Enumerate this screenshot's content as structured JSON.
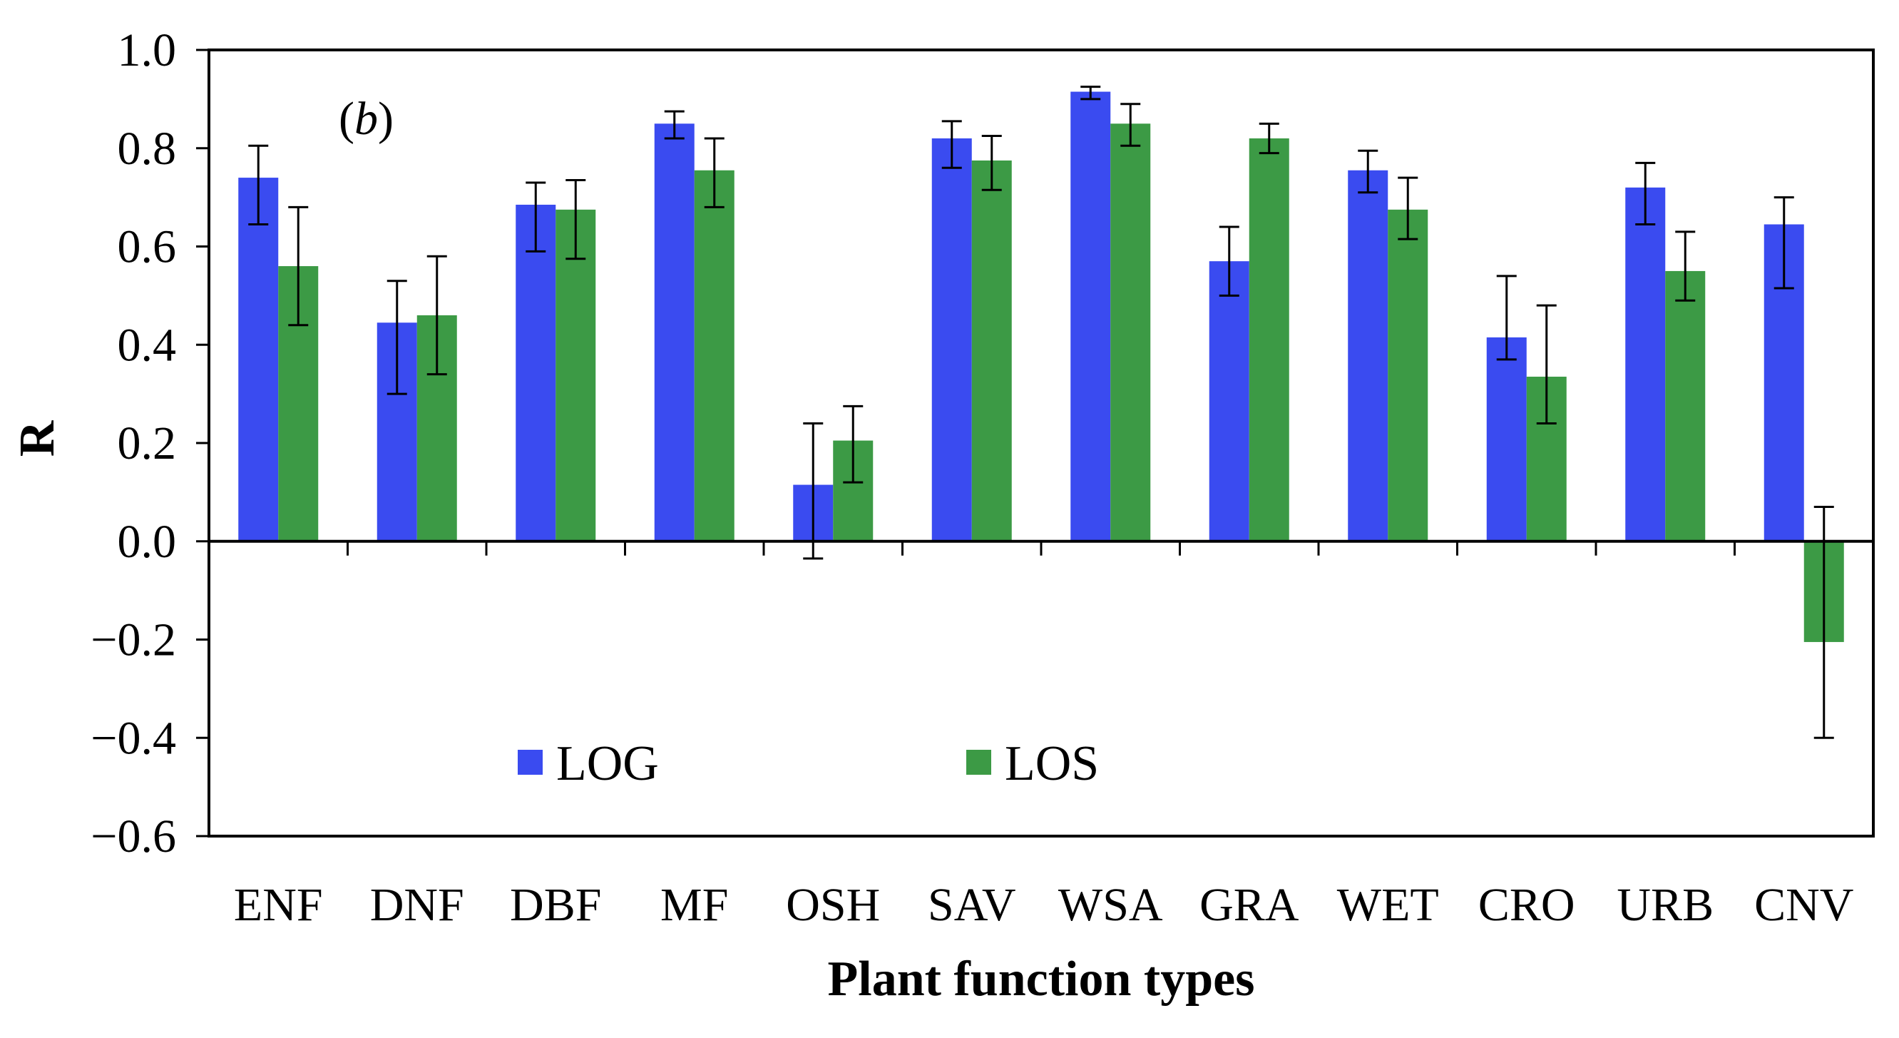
{
  "chart_data": {
    "type": "bar",
    "panel_label_open": "(",
    "panel_label_letter": "b",
    "panel_label_close": ")",
    "xlabel": "Plant function types",
    "ylabel": "R",
    "ylim": [
      -0.6,
      1.0
    ],
    "yticks": [
      "1.0",
      "0.8",
      "0.6",
      "0.4",
      "0.2",
      "0.0",
      "−0.2",
      "−0.4",
      "−0.6"
    ],
    "ytick_values": [
      1.0,
      0.8,
      0.6,
      0.4,
      0.2,
      0.0,
      -0.2,
      -0.4,
      -0.6
    ],
    "categories": [
      "ENF",
      "DNF",
      "DBF",
      "MF",
      "OSH",
      "SAV",
      "WSA",
      "GRA",
      "WET",
      "CRO",
      "URB",
      "CNV"
    ],
    "legend_position": "lower-left",
    "series": [
      {
        "name": "LOG",
        "color": "#3a4bf0",
        "values": [
          0.74,
          0.445,
          0.685,
          0.85,
          0.115,
          0.82,
          0.915,
          0.57,
          0.755,
          0.415,
          0.72,
          0.645
        ],
        "err_low": [
          0.645,
          0.3,
          0.59,
          0.82,
          -0.035,
          0.76,
          0.9,
          0.5,
          0.71,
          0.37,
          0.645,
          0.515
        ],
        "err_high": [
          0.805,
          0.53,
          0.73,
          0.875,
          0.24,
          0.855,
          0.925,
          0.64,
          0.795,
          0.54,
          0.77,
          0.7
        ]
      },
      {
        "name": "LOS",
        "color": "#3c9a45",
        "values": [
          0.56,
          0.46,
          0.675,
          0.755,
          0.205,
          0.775,
          0.85,
          0.82,
          0.675,
          0.335,
          0.55,
          -0.205
        ],
        "err_low": [
          0.44,
          0.34,
          0.575,
          0.68,
          0.12,
          0.715,
          0.805,
          0.79,
          0.615,
          0.24,
          0.49,
          -0.4
        ],
        "err_high": [
          0.68,
          0.58,
          0.735,
          0.82,
          0.275,
          0.825,
          0.89,
          0.85,
          0.74,
          0.48,
          0.63,
          0.07
        ]
      }
    ]
  }
}
